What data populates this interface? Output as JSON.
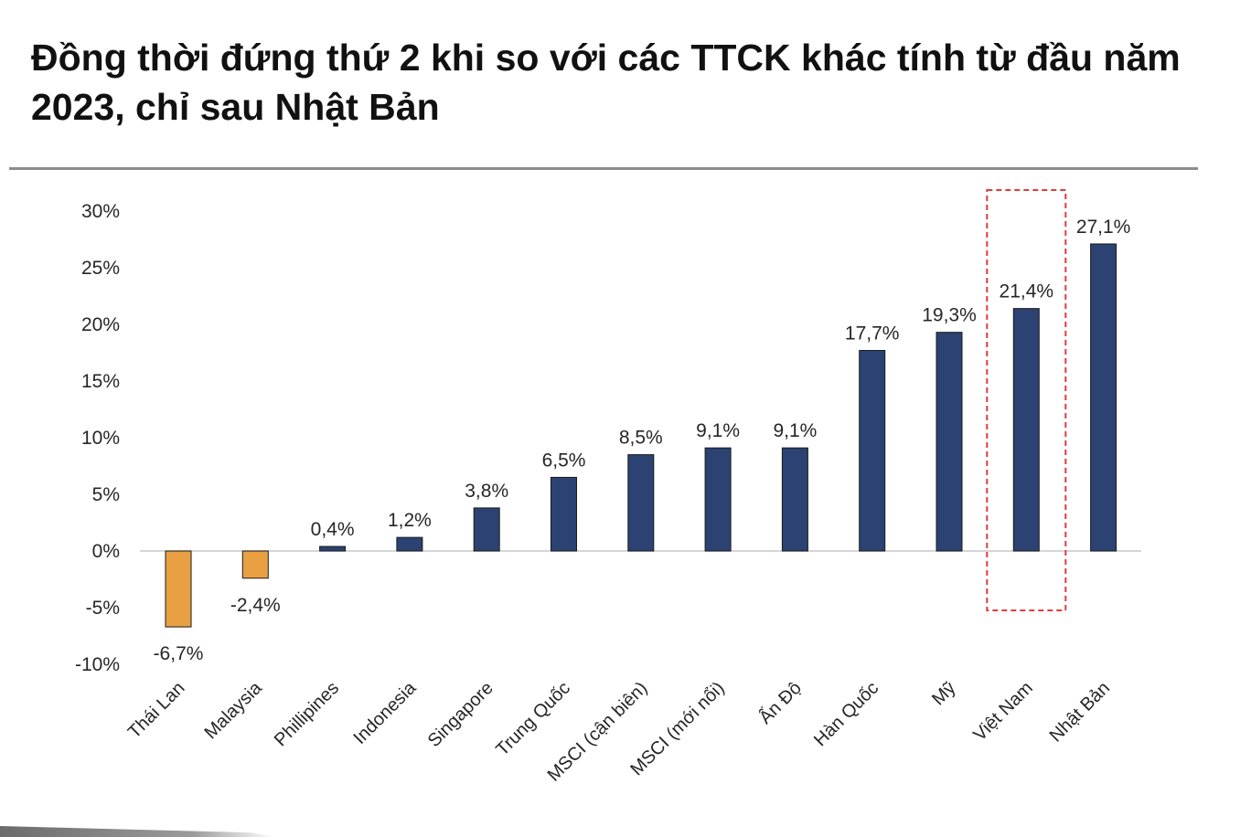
{
  "page": {
    "title": "Đồng thời đứng thứ 2 khi so với các TTCK khác tính từ đầu năm 2023, chỉ sau Nhật Bản"
  },
  "colors": {
    "positive": "#2b4272",
    "negative": "#e9a042",
    "highlight_box": "#e33b3b",
    "zero_line": "#c8c8c8"
  },
  "chart_data": {
    "type": "bar",
    "title": "",
    "xlabel": "",
    "ylabel": "",
    "ylim": [
      -10,
      30
    ],
    "yticks": [
      30,
      25,
      20,
      15,
      10,
      5,
      0,
      -5,
      -10
    ],
    "ytick_labels": [
      "30%",
      "25%",
      "20%",
      "15%",
      "10%",
      "5%",
      "0%",
      "-5%",
      "-10%"
    ],
    "categories": [
      "Thái Lan",
      "Malaysia",
      "Phillipines",
      "Indonesia",
      "Singapore",
      "Trung Quốc",
      "MSCI (cận biên)",
      "MSCI (mới nổi)",
      "Ấn Độ",
      "Hàn Quốc",
      "Mỹ",
      "Việt Nam",
      "Nhật Bản"
    ],
    "values": [
      -6.7,
      -2.4,
      0.4,
      1.2,
      3.8,
      6.5,
      8.5,
      9.1,
      9.1,
      17.7,
      19.3,
      21.4,
      27.1
    ],
    "value_labels": [
      "-6,7%",
      "-2,4%",
      "0,4%",
      "1,2%",
      "3,8%",
      "6,5%",
      "8,5%",
      "9,1%",
      "9,1%",
      "17,7%",
      "19,3%",
      "21,4%",
      "27,1%"
    ],
    "highlight_category": "Việt Nam",
    "grid": false,
    "legend": "none"
  }
}
